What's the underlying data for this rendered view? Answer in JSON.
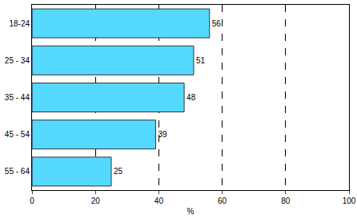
{
  "chart_data": {
    "type": "bar",
    "orientation": "horizontal",
    "categories": [
      "18-24",
      "25 - 34",
      "35 - 44",
      "45 - 54",
      "55 - 64"
    ],
    "values": [
      56,
      51,
      48,
      39,
      25
    ],
    "color": "#55d9ff",
    "xlabel": "%",
    "xlim": [
      0,
      100
    ],
    "xticks": [
      0,
      20,
      40,
      60,
      80,
      100
    ],
    "grid": true,
    "data_labels": true
  }
}
